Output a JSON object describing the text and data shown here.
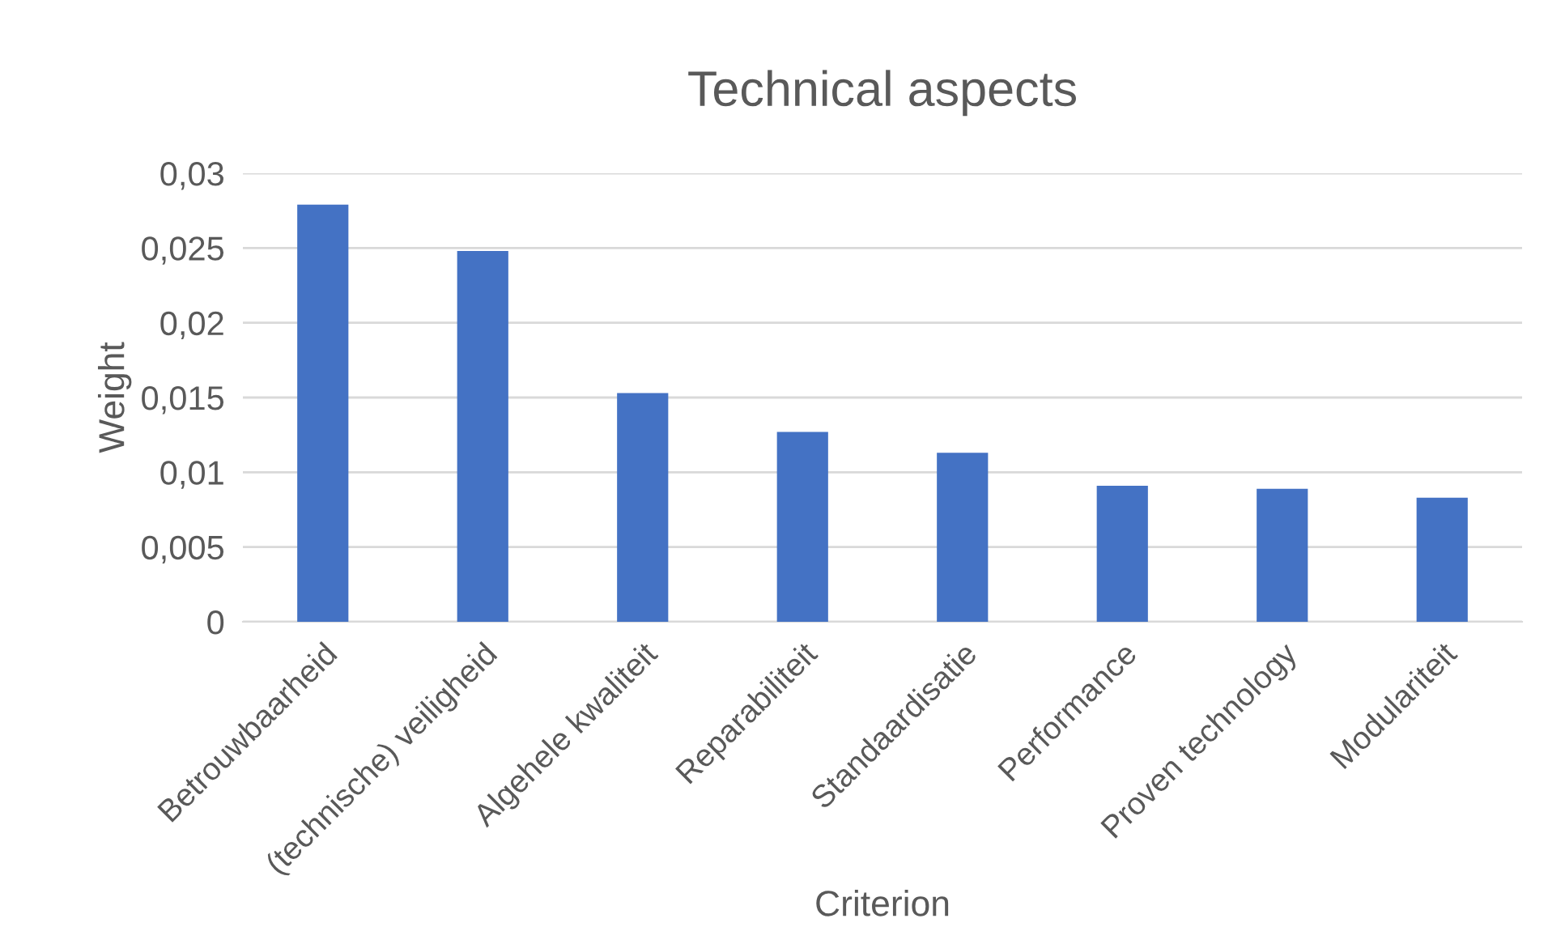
{
  "chart_data": {
    "type": "bar",
    "title": "Technical aspects",
    "xlabel": "Criterion",
    "ylabel": "Weight",
    "categories": [
      "Betrouwbaarheid",
      "(technische) veiligheid",
      "Algehele kwaliteit",
      "Reparabiliteit",
      "Standaardisatie",
      "Performance",
      "Proven technology",
      "Modulariteit"
    ],
    "values": [
      0.0279,
      0.0248,
      0.0153,
      0.0127,
      0.0113,
      0.0091,
      0.0089,
      0.0083
    ],
    "color": "#4472c4",
    "ylim": [
      0,
      0.03
    ],
    "yticks": [
      0,
      {
        "value": 0.005,
        "label": "0,005"
      },
      {
        "value": 0.01,
        "label": "0,01"
      },
      {
        "value": 0.015,
        "label": "0,015"
      },
      {
        "value": 0.02,
        "label": "0,02"
      },
      {
        "value": 0.025,
        "label": "0,025"
      },
      {
        "value": 0.03,
        "label": "0,03"
      }
    ],
    "grid": "y",
    "legend": false
  }
}
